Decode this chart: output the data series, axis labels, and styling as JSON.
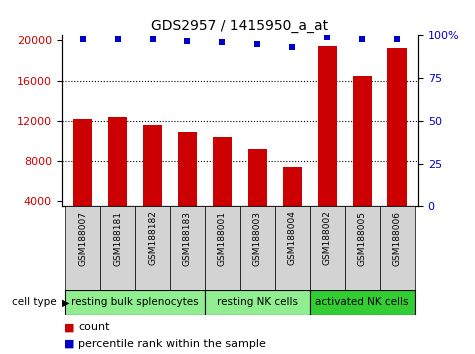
{
  "title": "GDS2957 / 1415950_a_at",
  "samples": [
    "GSM188007",
    "GSM188181",
    "GSM188182",
    "GSM188183",
    "GSM188001",
    "GSM188003",
    "GSM188004",
    "GSM188002",
    "GSM188005",
    "GSM188006"
  ],
  "counts": [
    12200,
    12400,
    11600,
    10900,
    10400,
    9200,
    7400,
    19400,
    16500,
    19200
  ],
  "percentiles": [
    98,
    98,
    98,
    97,
    96,
    95,
    93,
    99,
    98,
    98
  ],
  "cell_groups": [
    {
      "label": "resting bulk splenocytes",
      "start": 0,
      "end": 4,
      "color": "#90ee90"
    },
    {
      "label": "resting NK cells",
      "start": 4,
      "end": 7,
      "color": "#90ee90"
    },
    {
      "label": "activated NK cells",
      "start": 7,
      "end": 10,
      "color": "#32cd32"
    }
  ],
  "ylim_left": [
    3500,
    20500
  ],
  "ylim_right": [
    0,
    100
  ],
  "yticks_left": [
    4000,
    8000,
    12000,
    16000,
    20000
  ],
  "yticks_right": [
    0,
    25,
    50,
    75,
    100
  ],
  "bar_color": "#cc0000",
  "dot_color": "#0000cc",
  "sample_bg_color": "#d3d3d3",
  "legend_count_color": "#cc0000",
  "legend_pct_color": "#0000cc",
  "gridline_y": [
    8000,
    12000,
    16000
  ],
  "figure_width": 4.75,
  "figure_height": 3.54
}
